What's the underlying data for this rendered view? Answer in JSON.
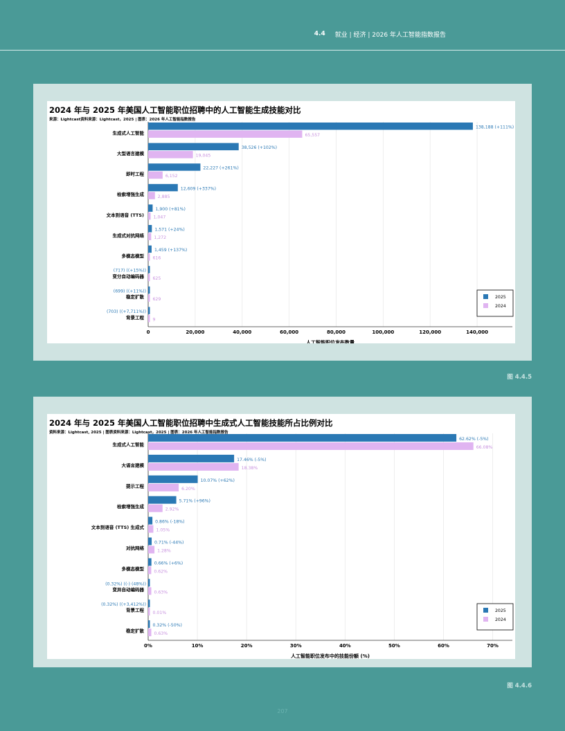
{
  "header": {
    "section": "4.4",
    "breadcrumb": "就业 | 经济 | 2026 年人工智能指数报告"
  },
  "page_number": "207",
  "figures": [
    {
      "title": "2024 年与 2025 年美国人工智能职位招聘中的人工智能生成技能对比",
      "source": "来源：Lightcast资料来源：Lightcast，2025 | 图表：2026 年人工智能指数报告",
      "figure_label": "图 4.4.5"
    },
    {
      "title": "2024 年与 2025 年美国人工智能职位招聘中生成式人工智能技能所占比例对比",
      "source": "资料来源：Lightcast, 2025 | 图表资料来源：Lightcast，2025 | 图表：2026 年人工智能指数报告",
      "figure_label": "图 4.4.6"
    }
  ],
  "chart_data": [
    {
      "type": "bar",
      "orientation": "horizontal",
      "title": "2024 年与 2025 年美国人工智能职位招聘中的人工智能生成技能对比",
      "xlabel": "人工智能职位发布数量",
      "xlim": [
        0,
        155000
      ],
      "xticks": [
        0,
        20000,
        40000,
        60000,
        80000,
        100000,
        120000,
        140000
      ],
      "xtick_labels": [
        "0",
        "20,000",
        "40,000",
        "60,000",
        "80,000",
        "100,000",
        "120,000",
        "140,000"
      ],
      "categories": [
        "生成式人工智能",
        "大型语言建模",
        "即时工程",
        "检索增强生成",
        "文本到语音 (TTS)",
        "生成式对抗网络",
        "多模态模型",
        "变分自动编码器",
        "稳定扩散",
        "背景工程"
      ],
      "series": [
        {
          "name": "2025",
          "color": "#2a78b4",
          "values": [
            138188,
            38526,
            22227,
            12609,
            1900,
            1571,
            1459,
            717,
            699,
            703
          ],
          "labels": [
            "138,188 (+111%)",
            "38,526 (+102%)",
            "22,227 (+261%)",
            "12,609 (+337%)",
            "1,900 (+81%)",
            "1,571 (+24%)",
            "1,459 (+137%)",
            "(717) ((+15%))",
            "(699) ((+11%))",
            "(703) ((+7,711%))"
          ]
        },
        {
          "name": "2024",
          "color": "#e0b4f1",
          "values": [
            65557,
            19045,
            6152,
            2885,
            1047,
            1272,
            616,
            625,
            629,
            9
          ],
          "labels": [
            "65,557",
            "19,045",
            "6,152",
            "2,885",
            "1,047",
            "1,272",
            "616",
            "625",
            "629",
            "9"
          ]
        }
      ],
      "legend": {
        "position": "bottom-right",
        "entries": [
          "2025",
          "2024"
        ]
      }
    },
    {
      "type": "bar",
      "orientation": "horizontal",
      "title": "2024 年与 2025 年美国人工智能职位招聘中生成式人工智能技能所占比例对比",
      "xlabel": "人工智能职位发布中的技能份额 (%)",
      "xlim": [
        0,
        74
      ],
      "xticks": [
        0,
        10,
        20,
        30,
        40,
        50,
        60,
        70
      ],
      "xtick_labels": [
        "0%",
        "10%",
        "20%",
        "30%",
        "40%",
        "50%",
        "60%",
        "70%"
      ],
      "categories": [
        "生成式人工智能",
        "大语言建模",
        "提示工程",
        "检索增强生成",
        "文本到语音 (TTS) 生成式",
        "对抗网络",
        "多模态模型",
        "变异自动编码器",
        "背景工程",
        "稳定扩散"
      ],
      "series": [
        {
          "name": "2025",
          "color": "#2a78b4",
          "values": [
            62.62,
            17.46,
            10.07,
            5.71,
            0.86,
            0.71,
            0.66,
            0.32,
            0.32,
            0.32
          ],
          "labels": [
            "62.62% (-5%)",
            "17.46% (-5%)",
            "10.07% (+62%)",
            "5.71% (+96%)",
            "0.86% (-18%)",
            "0.71% (-44%)",
            "0.66% (+6%)",
            "(0.32%) ((-) (48%))",
            "(0.32%) ((+3,412%))",
            "0.32% (-50%)"
          ]
        },
        {
          "name": "2024",
          "color": "#e0b4f1",
          "values": [
            66.08,
            18.38,
            6.2,
            2.92,
            1.05,
            1.28,
            0.62,
            0.63,
            0.01,
            0.63
          ],
          "labels": [
            "66.08%",
            "18.38%",
            "6.20%",
            "2.92%",
            "1.05%",
            "1.28%",
            "0.62%",
            "0.63%",
            "0.01%",
            "0.63%"
          ]
        }
      ],
      "legend": {
        "position": "bottom-right",
        "entries": [
          "2025",
          "2024"
        ]
      }
    }
  ]
}
